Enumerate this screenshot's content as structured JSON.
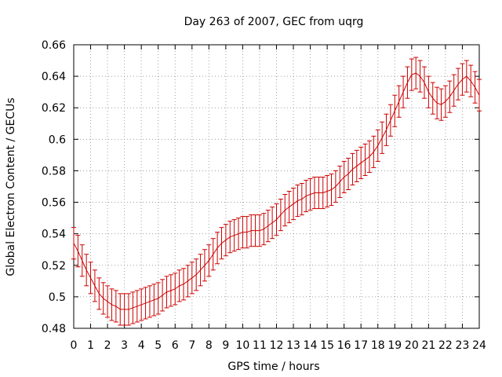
{
  "chart_data": {
    "type": "line",
    "title": "Day 263 of 2007, GEC from uqrg",
    "xlabel": "GPS time / hours",
    "ylabel": "Global Electron Content / GECUs",
    "xlim": [
      0,
      24
    ],
    "ylim": [
      0.48,
      0.66
    ],
    "x_ticks": [
      "0",
      "1",
      "2",
      "3",
      "4",
      "5",
      "6",
      "7",
      "8",
      "9",
      "10",
      "11",
      "12",
      "13",
      "14",
      "15",
      "16",
      "17",
      "18",
      "19",
      "20",
      "21",
      "22",
      "23",
      "24"
    ],
    "y_ticks": [
      "0.48",
      "0.5",
      "0.52",
      "0.54",
      "0.56",
      "0.58",
      "0.6",
      "0.62",
      "0.64",
      "0.66"
    ],
    "grid": true,
    "series": [
      {
        "color": "#cc0000",
        "error": 0.01,
        "x": [
          0,
          0.25,
          0.5,
          0.75,
          1,
          1.25,
          1.5,
          1.75,
          2,
          2.25,
          2.5,
          2.75,
          3,
          3.25,
          3.5,
          3.75,
          4,
          4.25,
          4.5,
          4.75,
          5,
          5.25,
          5.5,
          5.75,
          6,
          6.25,
          6.5,
          6.75,
          7,
          7.25,
          7.5,
          7.75,
          8,
          8.25,
          8.5,
          8.75,
          9,
          9.25,
          9.5,
          9.75,
          10,
          10.25,
          10.5,
          10.75,
          11,
          11.25,
          11.5,
          11.75,
          12,
          12.25,
          12.5,
          12.75,
          13,
          13.25,
          13.5,
          13.75,
          14,
          14.25,
          14.5,
          14.75,
          15,
          15.25,
          15.5,
          15.75,
          16,
          16.25,
          16.5,
          16.75,
          17,
          17.25,
          17.5,
          17.75,
          18,
          18.25,
          18.5,
          18.75,
          19,
          19.25,
          19.5,
          19.75,
          20,
          20.25,
          20.5,
          20.75,
          21,
          21.25,
          21.5,
          21.75,
          22,
          22.25,
          22.5,
          22.75,
          23,
          23.25,
          23.5,
          23.75,
          24
        ],
        "y": [
          0.534,
          0.529,
          0.523,
          0.517,
          0.512,
          0.507,
          0.502,
          0.499,
          0.497,
          0.495,
          0.494,
          0.492,
          0.492,
          0.492,
          0.493,
          0.494,
          0.495,
          0.496,
          0.497,
          0.498,
          0.499,
          0.501,
          0.503,
          0.504,
          0.505,
          0.507,
          0.508,
          0.51,
          0.512,
          0.514,
          0.517,
          0.52,
          0.523,
          0.527,
          0.531,
          0.534,
          0.536,
          0.538,
          0.539,
          0.54,
          0.541,
          0.541,
          0.542,
          0.542,
          0.542,
          0.543,
          0.545,
          0.547,
          0.549,
          0.552,
          0.555,
          0.557,
          0.559,
          0.561,
          0.562,
          0.564,
          0.565,
          0.566,
          0.566,
          0.566,
          0.567,
          0.568,
          0.57,
          0.573,
          0.576,
          0.578,
          0.581,
          0.583,
          0.585,
          0.587,
          0.589,
          0.592,
          0.596,
          0.601,
          0.606,
          0.612,
          0.618,
          0.624,
          0.63,
          0.636,
          0.641,
          0.642,
          0.64,
          0.636,
          0.63,
          0.626,
          0.623,
          0.622,
          0.624,
          0.627,
          0.631,
          0.635,
          0.638,
          0.64,
          0.637,
          0.633,
          0.628
        ]
      }
    ]
  }
}
